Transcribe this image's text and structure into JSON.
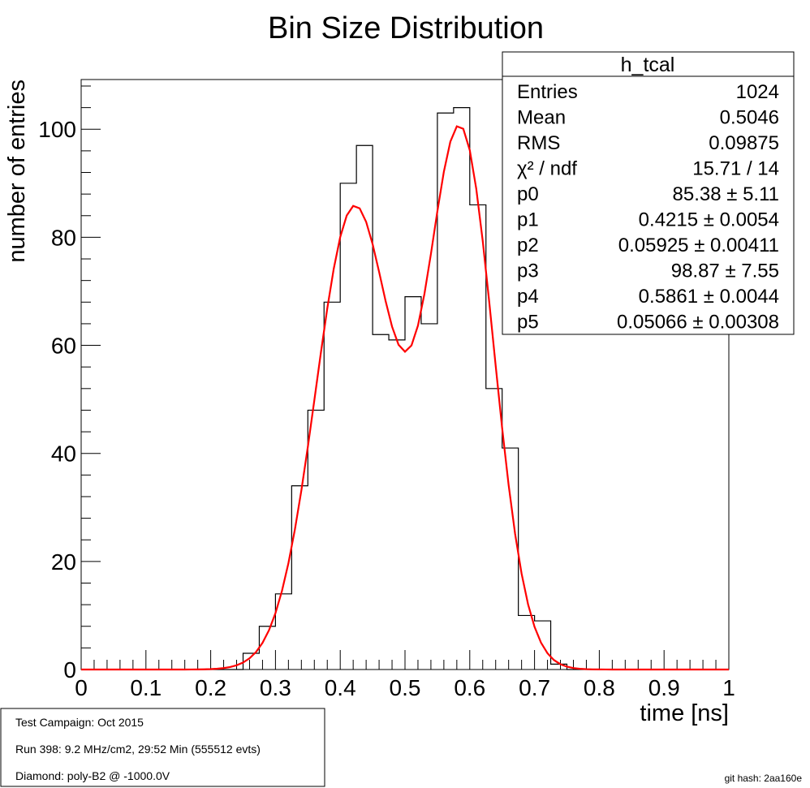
{
  "chart_data": {
    "type": "histogram",
    "title": "Bin Size Distribution",
    "xlabel": "time [ns]",
    "ylabel": "number of entries",
    "xlim": [
      0,
      1
    ],
    "ylim": [
      0,
      109.2
    ],
    "xticks": [
      "0",
      "0.1",
      "0.2",
      "0.3",
      "0.4",
      "0.5",
      "0.6",
      "0.7",
      "0.8",
      "0.9",
      "1"
    ],
    "yticks": [
      "0",
      "20",
      "40",
      "60",
      "80",
      "100"
    ],
    "bin_width": 0.025,
    "bins": [
      {
        "x": 0.0,
        "y": 0
      },
      {
        "x": 0.025,
        "y": 0
      },
      {
        "x": 0.05,
        "y": 0
      },
      {
        "x": 0.075,
        "y": 0
      },
      {
        "x": 0.1,
        "y": 0
      },
      {
        "x": 0.125,
        "y": 0
      },
      {
        "x": 0.15,
        "y": 0
      },
      {
        "x": 0.175,
        "y": 0
      },
      {
        "x": 0.2,
        "y": 0
      },
      {
        "x": 0.225,
        "y": 0
      },
      {
        "x": 0.25,
        "y": 3
      },
      {
        "x": 0.275,
        "y": 8
      },
      {
        "x": 0.3,
        "y": 14
      },
      {
        "x": 0.325,
        "y": 34
      },
      {
        "x": 0.35,
        "y": 48
      },
      {
        "x": 0.375,
        "y": 68
      },
      {
        "x": 0.4,
        "y": 90
      },
      {
        "x": 0.425,
        "y": 97
      },
      {
        "x": 0.45,
        "y": 62
      },
      {
        "x": 0.475,
        "y": 61
      },
      {
        "x": 0.5,
        "y": 69
      },
      {
        "x": 0.525,
        "y": 64
      },
      {
        "x": 0.55,
        "y": 103
      },
      {
        "x": 0.575,
        "y": 104
      },
      {
        "x": 0.6,
        "y": 86
      },
      {
        "x": 0.625,
        "y": 52
      },
      {
        "x": 0.65,
        "y": 41
      },
      {
        "x": 0.675,
        "y": 10
      },
      {
        "x": 0.7,
        "y": 9
      },
      {
        "x": 0.725,
        "y": 1
      },
      {
        "x": 0.75,
        "y": 0
      },
      {
        "x": 0.775,
        "y": 0
      },
      {
        "x": 0.8,
        "y": 0
      },
      {
        "x": 0.825,
        "y": 0
      },
      {
        "x": 0.85,
        "y": 0
      },
      {
        "x": 0.875,
        "y": 0
      },
      {
        "x": 0.9,
        "y": 0
      },
      {
        "x": 0.925,
        "y": 0
      },
      {
        "x": 0.95,
        "y": 0
      },
      {
        "x": 0.975,
        "y": 0
      }
    ],
    "fit": {
      "color": "#ff0000",
      "function": "double gaussian",
      "params": {
        "p0": 85.38,
        "p1": 0.4215,
        "p2": 0.05925,
        "p3": 98.87,
        "p4": 0.5861,
        "p5": 0.05066
      }
    },
    "histogram_color": "#000000",
    "grid": false
  },
  "stats_box": {
    "name": "h_tcal",
    "rows": [
      {
        "label": "Entries",
        "value": "1024"
      },
      {
        "label": "Mean",
        "value": "0.5046"
      },
      {
        "label": "RMS",
        "value": "0.09875"
      },
      {
        "label": "χ² / ndf",
        "value": "15.71 / 14"
      },
      {
        "label": "p0",
        "value": "85.38 ± 5.11"
      },
      {
        "label": "p1",
        "value": "0.4215 ± 0.0054"
      },
      {
        "label": "p2",
        "value": "0.05925 ± 0.00411"
      },
      {
        "label": "p3",
        "value": "98.87 ± 7.55"
      },
      {
        "label": "p4",
        "value": "0.5861 ± 0.0044"
      },
      {
        "label": "p5",
        "value": "0.05066 ± 0.00308"
      }
    ]
  },
  "info_box": {
    "lines": [
      "Test Campaign: Oct 2015",
      "Run 398: 9.2 MHz/cm2, 29:52 Min (555512 evts)",
      "Diamond: poly-B2 @ -1000.0V"
    ]
  },
  "git_hash": "git hash: 2aa160e"
}
